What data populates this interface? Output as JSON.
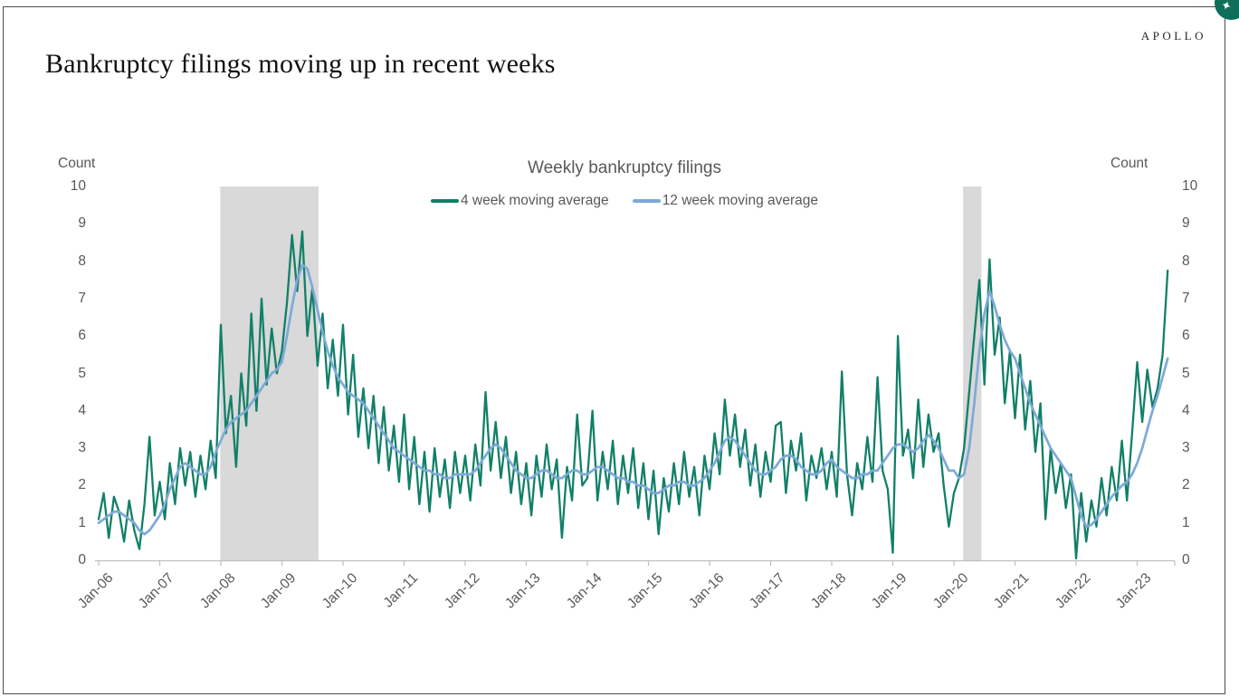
{
  "page": {
    "title": "Bankruptcy filings moving up in recent weeks",
    "logo": "APOLLO"
  },
  "badge": {
    "color": "#0d6f5a",
    "glyph": "✦"
  },
  "colors": {
    "series_4wk": "#118068",
    "series_12wk": "#7ea9d8",
    "recession_band": "#d9d9d9",
    "axis_line": "#bfbfbf",
    "chart_text": "#595959"
  },
  "chart_data": {
    "type": "line",
    "title": "Weekly bankruptcy filings",
    "left_axis_label": "Count",
    "right_axis_label": "Count",
    "ylim": [
      0,
      10
    ],
    "y_ticks": [
      0,
      1,
      2,
      3,
      4,
      5,
      6,
      7,
      8,
      9,
      10
    ],
    "xlim": [
      2005.94,
      2023.65
    ],
    "x_tick_years": [
      2006,
      2007,
      2008,
      2009,
      2010,
      2011,
      2012,
      2013,
      2014,
      2015,
      2016,
      2017,
      2018,
      2019,
      2020,
      2021,
      2022,
      2023
    ],
    "x_tick_labels": [
      "Jan-06",
      "Jan-07",
      "Jan-08",
      "Jan-09",
      "Jan-10",
      "Jan-11",
      "Jan-12",
      "Jan-13",
      "Jan-14",
      "Jan-15",
      "Jan-16",
      "Jan-17",
      "Jan-18",
      "Jan-19",
      "Jan-20",
      "Jan-21",
      "Jan-22",
      "Jan-23"
    ],
    "grid": false,
    "legend_position": "top-center",
    "recession_bands": [
      [
        2007.99,
        2009.6
      ],
      [
        2020.15,
        2020.45
      ]
    ],
    "band_color": "#d9d9d9",
    "series": [
      {
        "name": "4 week moving average",
        "color": "#118068",
        "stroke_width": 2.3,
        "x_start": 2006.0,
        "x_step_years": 0.0833333,
        "values": [
          1.1,
          1.8,
          0.6,
          1.7,
          1.3,
          0.5,
          1.6,
          0.8,
          0.3,
          1.5,
          3.3,
          1.2,
          2.1,
          1.1,
          2.6,
          1.5,
          3.0,
          2.0,
          2.9,
          1.7,
          2.8,
          1.9,
          3.2,
          2.2,
          6.3,
          3.4,
          4.4,
          2.5,
          5.0,
          3.6,
          6.6,
          4.0,
          7.0,
          4.7,
          6.2,
          5.0,
          5.6,
          6.9,
          8.7,
          7.2,
          8.8,
          6.0,
          7.3,
          5.2,
          6.6,
          4.6,
          5.9,
          4.4,
          6.3,
          3.9,
          5.5,
          3.3,
          4.6,
          3.0,
          4.4,
          2.6,
          4.1,
          2.4,
          3.6,
          2.1,
          3.9,
          1.9,
          3.3,
          1.5,
          2.9,
          1.3,
          3.0,
          1.7,
          2.7,
          1.4,
          2.9,
          1.8,
          2.8,
          1.6,
          3.1,
          2.0,
          4.5,
          2.4,
          3.7,
          2.2,
          3.3,
          1.8,
          2.9,
          1.5,
          2.6,
          1.2,
          2.8,
          1.7,
          3.1,
          1.9,
          2.7,
          0.6,
          2.5,
          1.6,
          3.9,
          2.0,
          2.2,
          4.0,
          1.6,
          2.9,
          1.9,
          3.2,
          1.5,
          2.8,
          1.8,
          3.0,
          1.4,
          2.6,
          1.1,
          2.4,
          0.7,
          2.2,
          1.3,
          2.6,
          1.5,
          2.9,
          1.7,
          2.5,
          1.2,
          2.8,
          1.9,
          3.4,
          2.3,
          4.3,
          2.8,
          3.9,
          2.5,
          3.5,
          2.0,
          3.1,
          1.7,
          2.9,
          2.1,
          3.6,
          3.7,
          1.8,
          3.2,
          2.4,
          3.4,
          1.6,
          2.8,
          2.2,
          3.0,
          1.9,
          2.9,
          1.7,
          5.05,
          2.3,
          1.2,
          2.6,
          1.9,
          3.3,
          2.1,
          4.9,
          2.4,
          1.9,
          0.2,
          6.0,
          2.8,
          3.5,
          2.2,
          4.3,
          2.5,
          3.9,
          2.9,
          3.4,
          2.0,
          0.9,
          1.8,
          2.2,
          3.0,
          4.5,
          6.0,
          7.5,
          4.7,
          8.05,
          5.5,
          6.5,
          4.2,
          5.6,
          3.8,
          5.5,
          3.5,
          4.8,
          2.9,
          4.2,
          1.1,
          3.0,
          1.8,
          2.6,
          1.4,
          2.3,
          0.05,
          1.8,
          0.5,
          1.6,
          0.9,
          2.2,
          1.2,
          2.5,
          1.6,
          3.2,
          1.6,
          3.4,
          5.3,
          3.7,
          5.1,
          4.1,
          4.6,
          5.5,
          7.75
        ]
      },
      {
        "name": "12 week moving average",
        "color": "#7ea9d8",
        "stroke_width": 2.7,
        "x_start": 2006.0,
        "x_step_years": 0.0833333,
        "values": [
          1.0,
          1.1,
          1.2,
          1.3,
          1.3,
          1.2,
          1.1,
          1.0,
          0.8,
          0.7,
          0.8,
          1.0,
          1.2,
          1.5,
          1.9,
          2.2,
          2.5,
          2.6,
          2.5,
          2.4,
          2.3,
          2.3,
          2.5,
          2.9,
          3.2,
          3.5,
          3.7,
          3.8,
          3.9,
          4.0,
          4.2,
          4.4,
          4.6,
          4.8,
          5.0,
          5.1,
          5.3,
          6.0,
          6.8,
          7.5,
          7.9,
          7.8,
          7.3,
          6.7,
          6.1,
          5.6,
          5.2,
          4.9,
          4.7,
          4.5,
          4.4,
          4.3,
          4.2,
          4.0,
          3.8,
          3.6,
          3.4,
          3.2,
          3.0,
          2.9,
          2.8,
          2.7,
          2.6,
          2.5,
          2.4,
          2.4,
          2.3,
          2.3,
          2.2,
          2.2,
          2.3,
          2.3,
          2.3,
          2.3,
          2.4,
          2.6,
          2.8,
          3.0,
          3.1,
          3.0,
          2.8,
          2.6,
          2.4,
          2.3,
          2.2,
          2.2,
          2.3,
          2.4,
          2.4,
          2.3,
          2.2,
          2.2,
          2.3,
          2.4,
          2.4,
          2.3,
          2.3,
          2.4,
          2.5,
          2.5,
          2.4,
          2.3,
          2.2,
          2.2,
          2.1,
          2.1,
          2.0,
          2.0,
          1.9,
          1.8,
          1.8,
          1.9,
          2.0,
          2.0,
          2.1,
          2.1,
          2.0,
          2.0,
          2.1,
          2.2,
          2.4,
          2.6,
          2.9,
          3.2,
          3.3,
          3.2,
          3.0,
          2.8,
          2.6,
          2.4,
          2.3,
          2.3,
          2.4,
          2.5,
          2.7,
          2.8,
          2.8,
          2.7,
          2.5,
          2.4,
          2.3,
          2.3,
          2.4,
          2.6,
          2.7,
          2.5,
          2.4,
          2.3,
          2.2,
          2.2,
          2.3,
          2.3,
          2.4,
          2.4,
          2.6,
          2.8,
          3.0,
          3.1,
          3.1,
          3.0,
          2.9,
          3.0,
          3.2,
          3.35,
          3.2,
          3.0,
          2.7,
          2.4,
          2.4,
          2.2,
          2.3,
          3.0,
          4.2,
          5.6,
          6.6,
          7.2,
          6.8,
          6.3,
          5.9,
          5.6,
          5.4,
          5.0,
          4.6,
          4.2,
          3.9,
          3.6,
          3.3,
          3.0,
          2.8,
          2.6,
          2.4,
          2.2,
          1.7,
          1.2,
          0.9,
          0.95,
          1.1,
          1.3,
          1.5,
          1.7,
          1.85,
          2.0,
          2.1,
          2.3,
          2.6,
          3.0,
          3.5,
          4.0,
          4.4,
          4.9,
          5.4
        ]
      }
    ]
  }
}
